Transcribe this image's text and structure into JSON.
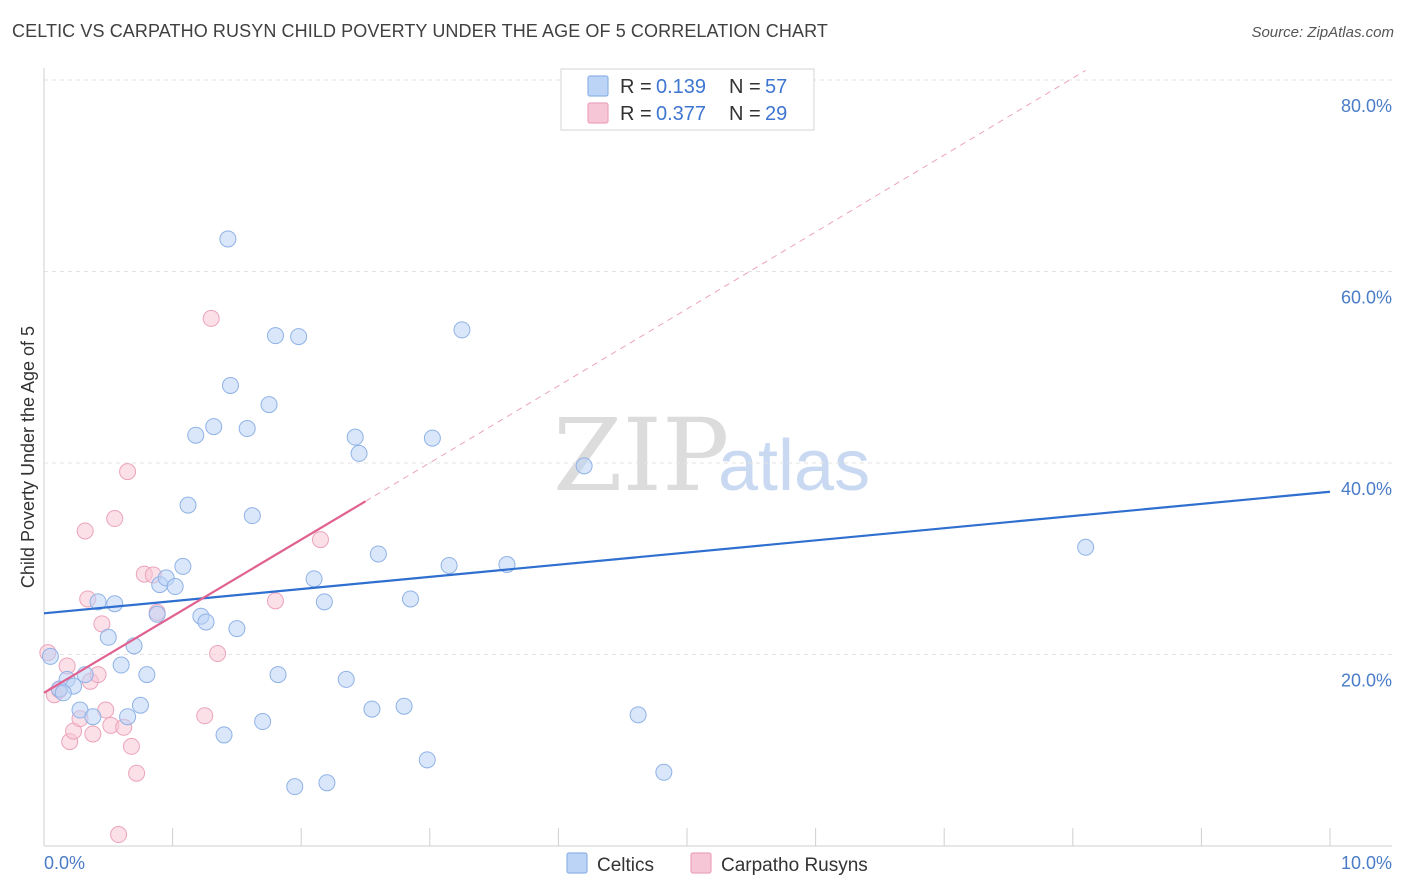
{
  "header": {
    "title": "CELTIC VS CARPATHO RUSYN CHILD POVERTY UNDER THE AGE OF 5 CORRELATION CHART",
    "source": "Source: ZipAtlas.com"
  },
  "watermark": {
    "zip": "ZIP",
    "atlas": "atlas"
  },
  "legend": {
    "celtics": {
      "r_label": "R =",
      "r_value": "0.139",
      "n_label": "N =",
      "n_value": "57"
    },
    "rusyns": {
      "r_label": "R =",
      "r_value": "0.377",
      "n_label": "N =",
      "n_value": "29"
    }
  },
  "bottom_legend": {
    "celtics": "Celtics",
    "rusyns": "Carpatho Rusyns"
  },
  "colors": {
    "celtics_fill": "#bcd4f5",
    "celtics_stroke": "#8fb2e6",
    "celtics_line": "#2f6fcf",
    "rusyns_fill": "#f7c6d6",
    "rusyns_stroke": "#eca3bc",
    "rusyns_line": "#e0608f"
  },
  "chart_data": {
    "type": "scatter",
    "title": "CELTIC VS CARPATHO RUSYN CHILD POVERTY UNDER THE AGE OF 5 CORRELATION CHART",
    "xlabel": "",
    "ylabel": "Child Poverty Under the Age of 5",
    "xlim": [
      0,
      10
    ],
    "ylim": [
      0,
      80
    ],
    "x_tick_labels": [
      "0.0%",
      "10.0%"
    ],
    "y_ticks": [
      20,
      40,
      60,
      80
    ],
    "y_tick_labels": [
      "20.0%",
      "40.0%",
      "60.0%",
      "80.0%"
    ],
    "grid": true,
    "series": [
      {
        "name": "Celtics",
        "r": 0.139,
        "n": 57,
        "trend": {
          "x": [
            0,
            10
          ],
          "y": [
            24.3,
            37.0
          ],
          "style": "solid"
        },
        "points": [
          [
            0.05,
            19.8
          ],
          [
            0.12,
            16.4
          ],
          [
            0.18,
            17.4
          ],
          [
            0.23,
            16.7
          ],
          [
            0.28,
            14.2
          ],
          [
            0.32,
            17.9
          ],
          [
            0.38,
            13.5
          ],
          [
            0.42,
            25.5
          ],
          [
            0.5,
            21.8
          ],
          [
            0.55,
            25.3
          ],
          [
            0.6,
            18.9
          ],
          [
            0.65,
            13.5
          ],
          [
            0.7,
            20.9
          ],
          [
            0.75,
            14.7
          ],
          [
            0.8,
            17.9
          ],
          [
            0.88,
            24.2
          ],
          [
            0.9,
            27.3
          ],
          [
            0.95,
            28.0
          ],
          [
            1.02,
            27.1
          ],
          [
            1.08,
            29.2
          ],
          [
            1.12,
            35.6
          ],
          [
            1.18,
            42.9
          ],
          [
            1.22,
            24.0
          ],
          [
            1.26,
            23.4
          ],
          [
            1.32,
            43.8
          ],
          [
            1.4,
            11.6
          ],
          [
            1.43,
            63.4
          ],
          [
            1.45,
            48.1
          ],
          [
            1.5,
            22.7
          ],
          [
            1.58,
            43.6
          ],
          [
            1.62,
            34.5
          ],
          [
            1.7,
            13.0
          ],
          [
            1.75,
            46.1
          ],
          [
            1.8,
            53.3
          ],
          [
            1.82,
            17.9
          ],
          [
            1.95,
            6.2
          ],
          [
            1.98,
            53.2
          ],
          [
            2.1,
            27.9
          ],
          [
            2.18,
            25.5
          ],
          [
            2.2,
            6.6
          ],
          [
            2.35,
            17.4
          ],
          [
            2.42,
            42.7
          ],
          [
            2.45,
            41.0
          ],
          [
            2.55,
            14.3
          ],
          [
            2.6,
            30.5
          ],
          [
            2.8,
            14.6
          ],
          [
            2.85,
            25.8
          ],
          [
            2.98,
            9.0
          ],
          [
            3.02,
            42.6
          ],
          [
            3.15,
            29.3
          ],
          [
            3.25,
            53.9
          ],
          [
            3.6,
            29.4
          ],
          [
            4.2,
            39.7
          ],
          [
            4.62,
            13.7
          ],
          [
            4.82,
            7.7
          ],
          [
            8.1,
            31.2
          ],
          [
            0.15,
            16.0
          ]
        ]
      },
      {
        "name": "Carpatho Rusyns",
        "r": 0.377,
        "n": 29,
        "trend_solid": {
          "x": [
            0.0,
            2.5
          ],
          "y": [
            16.0,
            36.0
          ]
        },
        "trend_dashed": {
          "x": [
            2.5,
            8.1
          ],
          "y": [
            36.0,
            81.0
          ]
        },
        "points": [
          [
            0.03,
            20.2
          ],
          [
            0.08,
            15.8
          ],
          [
            0.12,
            16.3
          ],
          [
            0.18,
            18.8
          ],
          [
            0.2,
            10.9
          ],
          [
            0.23,
            12.0
          ],
          [
            0.28,
            13.3
          ],
          [
            0.32,
            32.9
          ],
          [
            0.34,
            25.8
          ],
          [
            0.36,
            17.2
          ],
          [
            0.38,
            11.7
          ],
          [
            0.42,
            17.9
          ],
          [
            0.45,
            23.2
          ],
          [
            0.48,
            14.2
          ],
          [
            0.52,
            12.6
          ],
          [
            0.55,
            34.2
          ],
          [
            0.58,
            1.2
          ],
          [
            0.62,
            12.4
          ],
          [
            0.65,
            39.1
          ],
          [
            0.68,
            10.4
          ],
          [
            0.72,
            7.6
          ],
          [
            0.78,
            28.4
          ],
          [
            0.85,
            28.3
          ],
          [
            0.88,
            24.4
          ],
          [
            1.25,
            13.6
          ],
          [
            1.3,
            55.1
          ],
          [
            1.35,
            20.1
          ],
          [
            1.8,
            25.6
          ],
          [
            2.15,
            32.0
          ]
        ]
      }
    ]
  }
}
